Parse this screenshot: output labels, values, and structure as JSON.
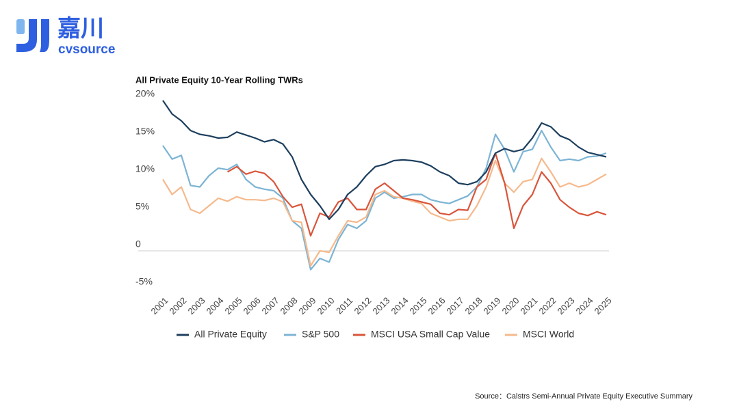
{
  "logo": {
    "name": "嘉川",
    "brand": "cvsource"
  },
  "source": "Source：Calstrs Semi-Annual Private Equity Executive Summary",
  "chart_data": {
    "type": "line",
    "title": "All Private Equity 10-Year Rolling TWRs",
    "categories": [
      "2001",
      null,
      "2002",
      null,
      "2003",
      null,
      "2004",
      null,
      "2005",
      null,
      "2006",
      null,
      "2007",
      null,
      "2008",
      null,
      "2009",
      null,
      "2010",
      null,
      "2011",
      null,
      "2012",
      null,
      "2013",
      null,
      "2014",
      null,
      "2015",
      null,
      "2016",
      null,
      "2017",
      null,
      "2018",
      null,
      "2019",
      null,
      "2020",
      null,
      "2021",
      null,
      "2022",
      null,
      "2023",
      null,
      "2024",
      null,
      "2025"
    ],
    "ylim": [
      -5,
      20
    ],
    "yticks": [
      {
        "value": -5,
        "label": "-5%"
      },
      0,
      {
        "value": 5,
        "label": "5%"
      },
      {
        "value": 10,
        "label": "10%"
      },
      {
        "value": 15,
        "label": "15%"
      },
      {
        "value": 20,
        "label": "20%"
      }
    ],
    "legend": "bottom",
    "series": [
      {
        "name": "All Private Equity",
        "color": "#1d3f5e",
        "values": [
          20,
          18.2,
          17.3,
          16,
          15.5,
          15.3,
          15,
          15.1,
          15.8,
          15.4,
          15,
          14.5,
          14.8,
          14.2,
          12.5,
          9.5,
          7.5,
          6,
          4.2,
          5.5,
          7.5,
          8.5,
          10,
          11.2,
          11.5,
          12,
          12.1,
          12,
          11.8,
          11.3,
          10.5,
          10,
          9,
          8.8,
          9.2,
          10.5,
          13,
          13.6,
          13.2,
          13.5,
          15,
          17,
          16.5,
          15.3,
          14.8,
          13.8,
          13.1,
          12.8,
          12.5
        ]
      },
      {
        "name": "S&P 500",
        "color": "#7cb4d4",
        "values": [
          14,
          12.2,
          12.7,
          8.7,
          8.5,
          10,
          11,
          10.8,
          11.5,
          9.5,
          8.5,
          8.2,
          8,
          7,
          4,
          3,
          -2.5,
          -1,
          -1.5,
          1.5,
          3.5,
          3,
          4,
          7,
          7.8,
          7,
          7.2,
          7.5,
          7.5,
          6.8,
          6.5,
          6.3,
          6.8,
          7.3,
          8.5,
          11,
          15.5,
          13.5,
          10.5,
          13.2,
          13.5,
          16,
          13.8,
          12,
          12.2,
          12,
          12.5,
          12.6,
          13
        ]
      },
      {
        "name": "MSCI USA Small Cap Value",
        "color": "#d9553a",
        "values": [
          null,
          null,
          null,
          null,
          null,
          null,
          null,
          10.5,
          11.2,
          10.2,
          10.6,
          10.3,
          9.2,
          7.2,
          5.8,
          6.2,
          2,
          5,
          4.5,
          6.5,
          7,
          5.5,
          5.5,
          8.2,
          9,
          8,
          7,
          6.8,
          6.5,
          6.2,
          5,
          4.8,
          5.5,
          5.4,
          8.5,
          9.5,
          13,
          9,
          3,
          6,
          7.5,
          10.5,
          9,
          6.8,
          5.8,
          5,
          4.7,
          5.2,
          4.8
        ]
      },
      {
        "name": "MSCI World",
        "color": "#f6b98c",
        "values": [
          9.5,
          7.5,
          8.5,
          5.5,
          5,
          6,
          7,
          6.6,
          7.2,
          6.8,
          6.8,
          6.7,
          7,
          6.5,
          4,
          3.8,
          -2,
          0,
          -0.2,
          2,
          4,
          3.8,
          4.5,
          7.5,
          8,
          7.2,
          7,
          6.6,
          6.3,
          5,
          4.5,
          4,
          4.2,
          4.2,
          6,
          8.5,
          12,
          9,
          7.8,
          9.2,
          9.5,
          12.3,
          10.5,
          8.5,
          9,
          8.5,
          8.8,
          9.5,
          10.2
        ]
      }
    ]
  }
}
